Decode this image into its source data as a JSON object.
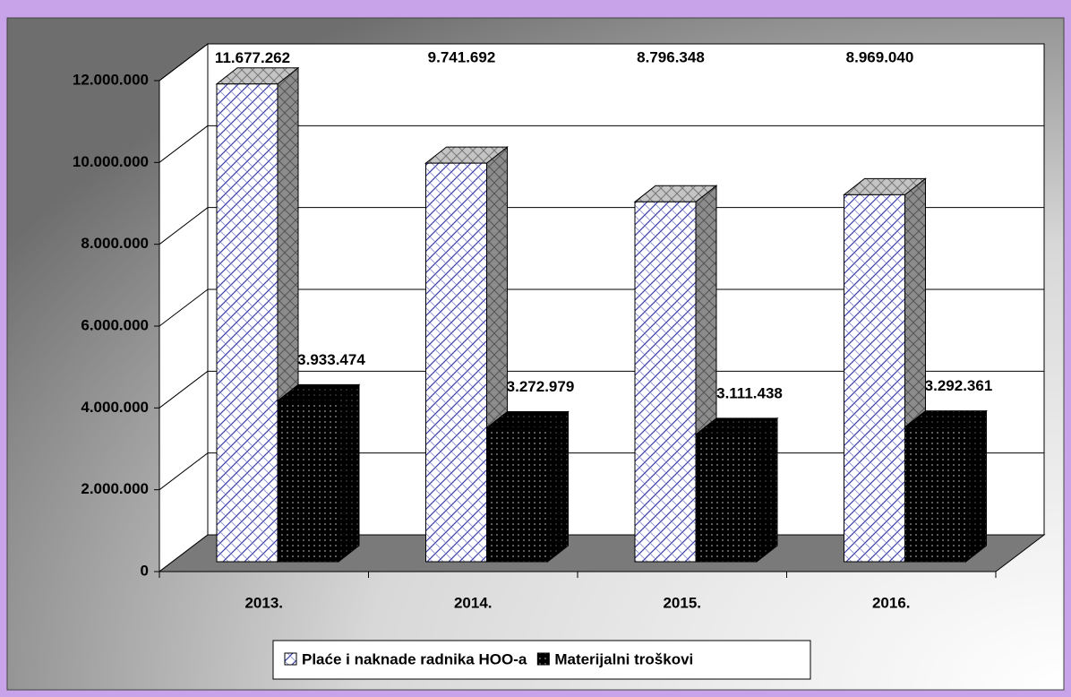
{
  "chart_data": {
    "type": "bar3d",
    "categories": [
      "2013.",
      "2014.",
      "2015.",
      "2016."
    ],
    "series": [
      {
        "name": "Plaće i naknade radnika HOO-a",
        "color": "#3b3fa8",
        "values": [
          11677262,
          9741692,
          8796348,
          8969040
        ],
        "value_labels": [
          "11.677.262",
          "9.741.692",
          "8.796.348",
          "8.969.040"
        ]
      },
      {
        "name": "Materijalni troškovi",
        "color": "#000000",
        "values": [
          3933474,
          3272979,
          3111438,
          3292361
        ],
        "value_labels": [
          "3.933.474",
          "3.272.979",
          "3.111.438",
          "3.292.361"
        ]
      }
    ],
    "ylim": [
      0,
      12000000
    ],
    "yticks": [
      0,
      {
        "value": 2000000,
        "label": "2.000.000"
      },
      {
        "value": 4000000,
        "label": "4.000.000"
      },
      {
        "value": 6000000,
        "label": "6.000.000"
      },
      {
        "value": 8000000,
        "label": "8.000.000"
      },
      {
        "value": 10000000,
        "label": "10.000.000"
      },
      {
        "value": 12000000,
        "label": "12.000.000"
      }
    ],
    "grid": true
  }
}
